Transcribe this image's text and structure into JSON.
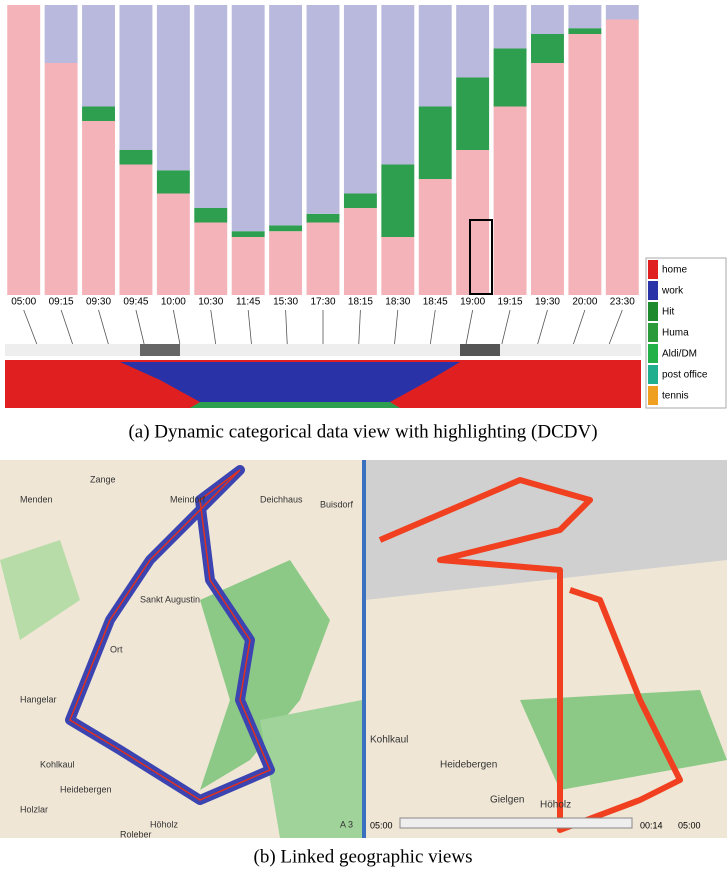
{
  "figure_a": {
    "type": "stacked-columns",
    "times": [
      "05:00",
      "09:15",
      "09:30",
      "09:45",
      "10:00",
      "10:30",
      "11:45",
      "15:30",
      "17:30",
      "18:15",
      "18:30",
      "18:45",
      "19:00",
      "19:15",
      "19:30",
      "20:00",
      "23:30"
    ],
    "series": [
      {
        "color": "#f4b3b8",
        "values": [
          100,
          80,
          60,
          45,
          35,
          25,
          20,
          22,
          25,
          30,
          20,
          40,
          50,
          65,
          80,
          90,
          95
        ]
      },
      {
        "color": "#2e9e4f",
        "values": [
          0,
          0,
          5,
          5,
          8,
          5,
          2,
          2,
          3,
          5,
          25,
          25,
          25,
          20,
          10,
          2,
          0
        ]
      },
      {
        "color": "#b9b9dd",
        "values": [
          0,
          20,
          35,
          50,
          57,
          70,
          78,
          76,
          72,
          65,
          55,
          35,
          25,
          15,
          10,
          8,
          5
        ]
      }
    ],
    "ylim": [
      0,
      100
    ],
    "legend": [
      {
        "name": "home",
        "color": "#e02020"
      },
      {
        "name": "work",
        "color": "#2a32a8"
      },
      {
        "name": "Hit",
        "color": "#1e8a2e"
      },
      {
        "name": "Huma",
        "color": "#2a9a3a"
      },
      {
        "name": "Aldi/DM",
        "color": "#22b048"
      },
      {
        "name": "post office",
        "color": "#1fae8e"
      },
      {
        "name": "tennis",
        "color": "#f0a020"
      }
    ],
    "caption": "(a) Dynamic categorical data view with highlighting (DCDV)"
  },
  "figure_b": {
    "left_map_labels": [
      "Zange",
      "Meindorf",
      "Deichhaus",
      "Buisdorf",
      "Menden",
      "Sankt Augustin",
      "Ort",
      "Hangelar",
      "Kohlkaul",
      "Heidebergen",
      "Holzlar",
      "Höholz",
      "Roleber",
      "A 3"
    ],
    "right_map_labels": [
      "Kohlkaul",
      "Heidebergen",
      "Gielgen",
      "Höholz"
    ],
    "timeline": [
      "05:00",
      "00:14",
      "05:00"
    ],
    "caption": "(b) Linked geographic views"
  }
}
